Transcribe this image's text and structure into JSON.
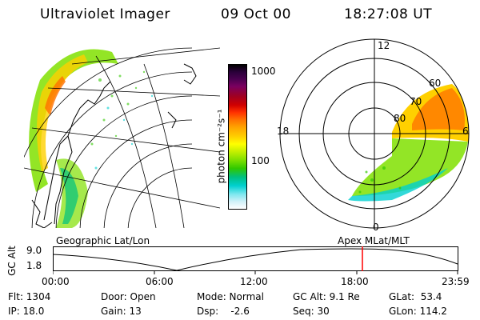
{
  "header": {
    "instrument": "Ultraviolet Imager",
    "date": "09 Oct 00",
    "time": "18:27:08 UT"
  },
  "colorbar": {
    "unit_label": "photon cm⁻²s⁻¹",
    "ticks": [
      "1000",
      "100"
    ],
    "scale": "log",
    "colors": [
      "#000000",
      "#2a003a",
      "#4a0050",
      "#7a0060",
      "#a00020",
      "#d00000",
      "#ff3000",
      "#ff7000",
      "#ffa000",
      "#ffd000",
      "#ffff00",
      "#c8f000",
      "#80e000",
      "#30c800",
      "#00c080",
      "#00d0d0",
      "#80e8f0",
      "#d0f0f8",
      "#ffffff"
    ]
  },
  "left_panel": {
    "label": "Geographic Lat/Lon"
  },
  "right_panel": {
    "label": "Apex MLat/MLT",
    "mlt_labels": {
      "top": "12",
      "left": "18",
      "right": "6",
      "bottom": "0"
    },
    "lat_labels": [
      "60",
      "70",
      "80"
    ]
  },
  "timeline": {
    "ylabel": "GC Alt",
    "ticks_y": [
      "9.0",
      "1.8"
    ],
    "ticks_x": [
      "00:00",
      "06:00",
      "12:00",
      "18:00",
      "23:59"
    ],
    "marker_color": "#ff0000"
  },
  "status": {
    "flt": "Flt: 1304",
    "ip": "IP: 18.0",
    "door": "Door: Open",
    "gain": "Gain: 13",
    "mode": "Mode: Normal",
    "dsp": "Dsp:    -2.6",
    "gcalt": "GC Alt: 9.1 Re",
    "seq": "Seq: 30",
    "glat": "GLat:  53.4",
    "glon": "GLon: 114.2"
  }
}
